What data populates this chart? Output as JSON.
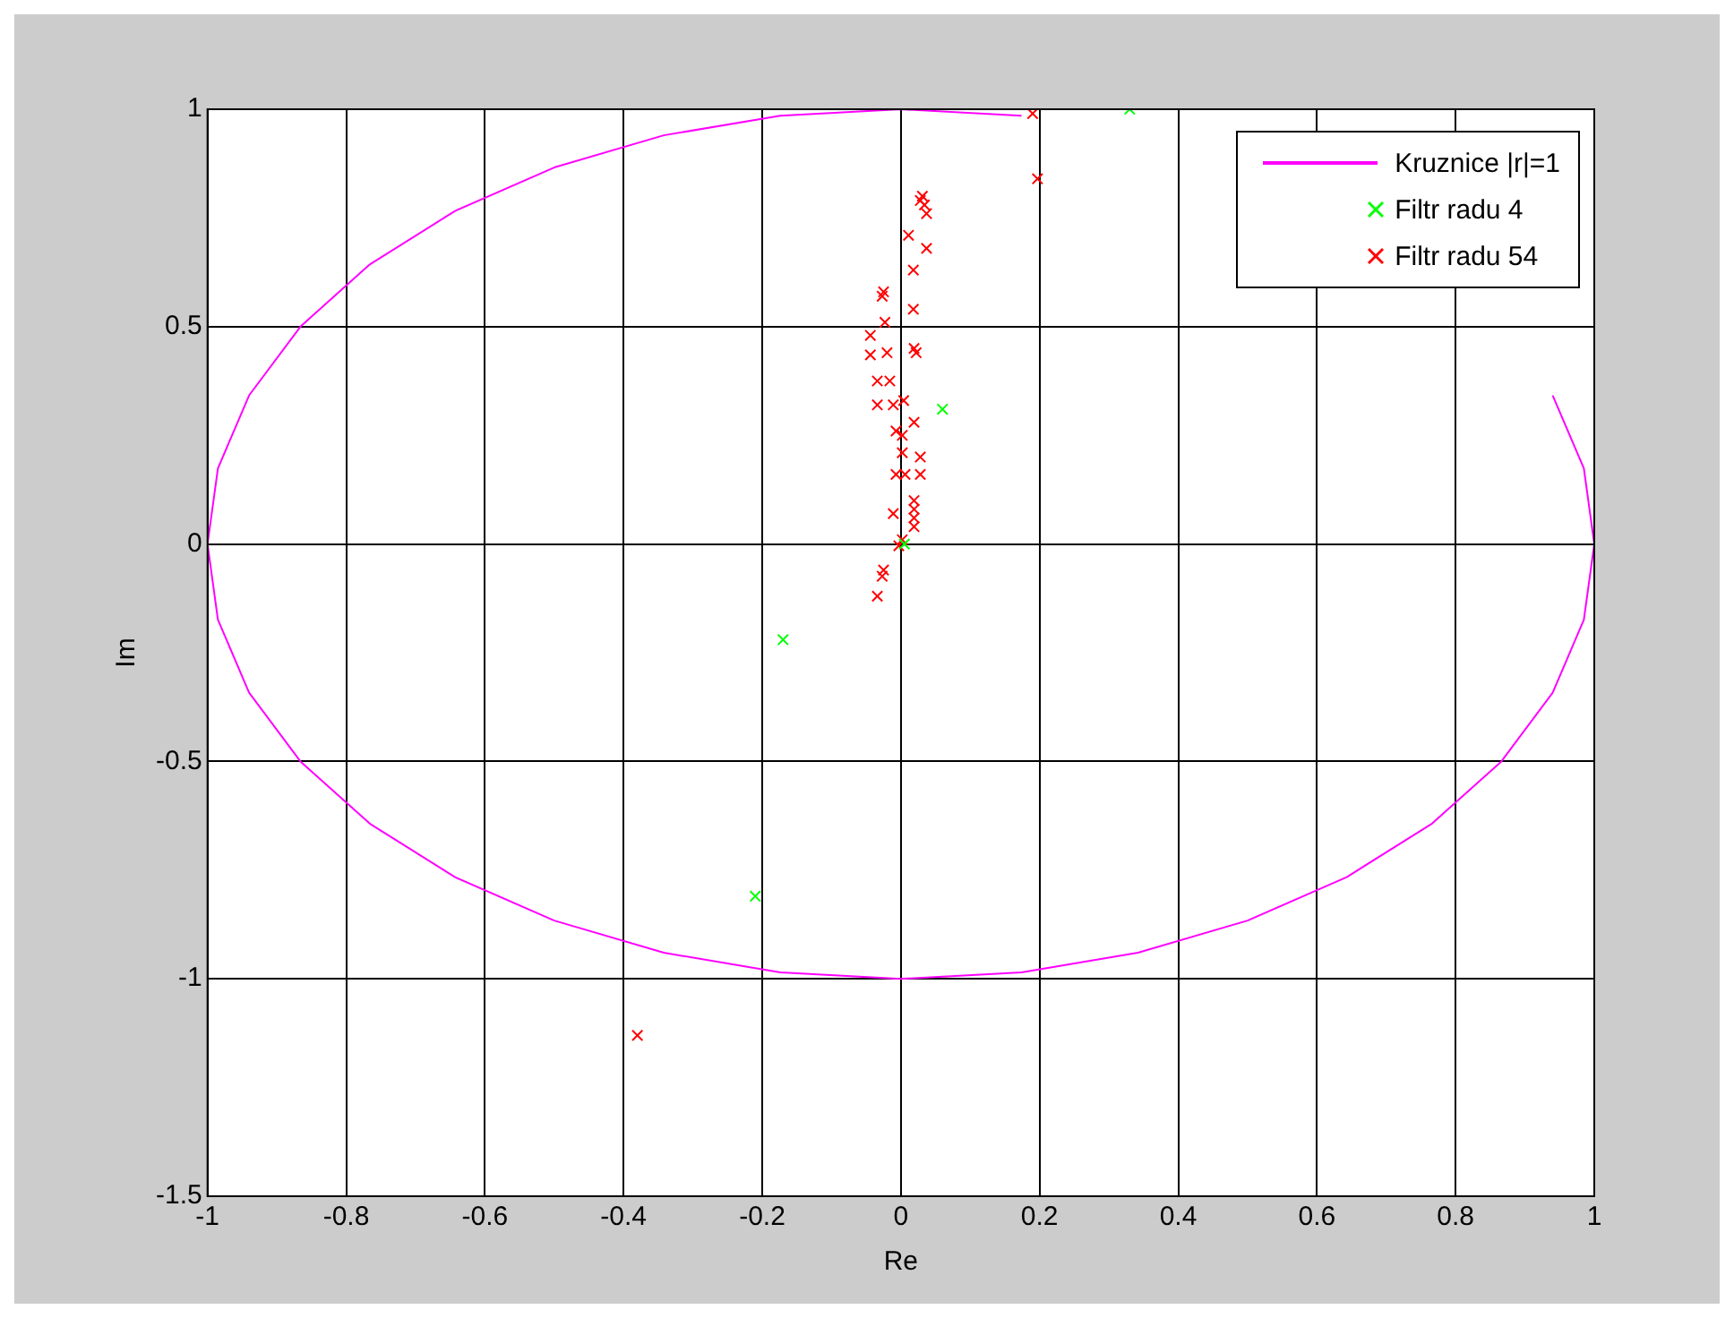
{
  "chart_data": {
    "type": "scatter",
    "xlabel": "Re",
    "ylabel": "Im",
    "xlim": [
      -1,
      1
    ],
    "ylim": [
      -1.5,
      1
    ],
    "xticks": [
      -1,
      -0.8,
      -0.6,
      -0.4,
      -0.2,
      0,
      0.2,
      0.4,
      0.6,
      0.8,
      1
    ],
    "yticks": [
      -1.5,
      -1,
      -0.5,
      0,
      0.5,
      1
    ],
    "grid": true,
    "legend": "top right",
    "marker": "cross",
    "series": [
      {
        "name": "Kruznice |r|=1",
        "type": "line",
        "marker": "none",
        "color": "#ff00ff",
        "x": [
          0.174,
          0,
          -0.174,
          -0.342,
          -0.5,
          -0.643,
          -0.766,
          -0.866,
          -0.94,
          -0.985,
          -1,
          -0.985,
          -0.94,
          -0.866,
          -0.766,
          -0.643,
          -0.5,
          -0.342,
          -0.174,
          0,
          0.174,
          0.342,
          0.5,
          0.643,
          0.766,
          0.866,
          0.94,
          0.985,
          1,
          0.985,
          0.94
        ],
        "values": [
          0.985,
          1,
          0.985,
          0.94,
          0.866,
          0.766,
          0.643,
          0.5,
          0.342,
          0.174,
          0,
          -0.174,
          -0.342,
          -0.5,
          -0.643,
          -0.766,
          -0.866,
          -0.94,
          -0.985,
          -1,
          -0.985,
          -0.94,
          -0.866,
          -0.766,
          -0.643,
          -0.5,
          -0.342,
          -0.174,
          0,
          0.174,
          0.342
        ]
      },
      {
        "name": "Filtr radu 4",
        "color": "#00ff00",
        "x": [
          0.33,
          0.06,
          0.005,
          -0.17,
          -0.21
        ],
        "values": [
          1,
          0.31,
          0,
          -0.22,
          -0.81
        ]
      },
      {
        "name": "Filtr radu 54",
        "color": "#ff0000",
        "x": [
          0.19,
          0.197,
          0.031,
          0.028,
          0.034,
          0.037,
          0.011,
          0.037,
          0.018,
          -0.025,
          -0.027,
          0.018,
          -0.023,
          -0.044,
          0.019,
          0.022,
          -0.044,
          -0.02,
          -0.034,
          -0.016,
          -0.034,
          -0.011,
          0.004,
          0.019,
          -0.007,
          0.002,
          0.002,
          0.028,
          -0.007,
          0.006,
          0.028,
          0.019,
          0.019,
          0.019,
          0.019,
          -0.011,
          0.002,
          -0.003,
          -0.025,
          -0.027,
          -0.034,
          -0.38
        ],
        "values": [
          0.99,
          0.84,
          0.8,
          0.79,
          0.78,
          0.76,
          0.71,
          0.68,
          0.63,
          0.58,
          0.57,
          0.54,
          0.51,
          0.48,
          0.45,
          0.44,
          0.435,
          0.44,
          0.375,
          0.375,
          0.32,
          0.32,
          0.33,
          0.28,
          0.26,
          0.25,
          0.21,
          0.2,
          0.16,
          0.16,
          0.16,
          0.1,
          0.08,
          0.06,
          0.04,
          0.07,
          0.01,
          -0.004,
          -0.06,
          -0.074,
          -0.12,
          -1.13
        ]
      }
    ]
  }
}
